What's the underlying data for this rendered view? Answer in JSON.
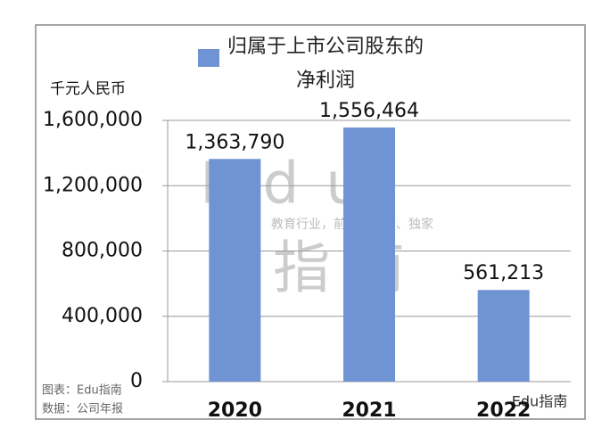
{
  "chart_data": {
    "type": "bar",
    "y_unit_label": "千元人民币",
    "categories": [
      "2020",
      "2021",
      "2022"
    ],
    "series": [
      {
        "name": "归属于上市公司股东的净利润",
        "color": "#7093d4",
        "values": [
          1363790,
          1556464,
          561213
        ],
        "value_labels": [
          "1,363,790",
          "1,556,464",
          "561,213"
        ]
      }
    ],
    "ylim": [
      0,
      1600000
    ],
    "yticks": [
      0,
      {
        "value": 400000,
        "label": "400,000"
      },
      {
        "value": 800000,
        "label": "800,000"
      },
      {
        "value": 1200000,
        "label": "1,200,000"
      },
      {
        "value": 1600000,
        "label": "1,600,000"
      }
    ],
    "grid": true,
    "source_notes": [
      "图表：Edu指南",
      "数据：公司年报"
    ],
    "watermark": {
      "brand": "Edu",
      "name": "指南",
      "slogan": "教育行业，前沿、深度、独家"
    },
    "footer_brand": "Edu指南"
  }
}
